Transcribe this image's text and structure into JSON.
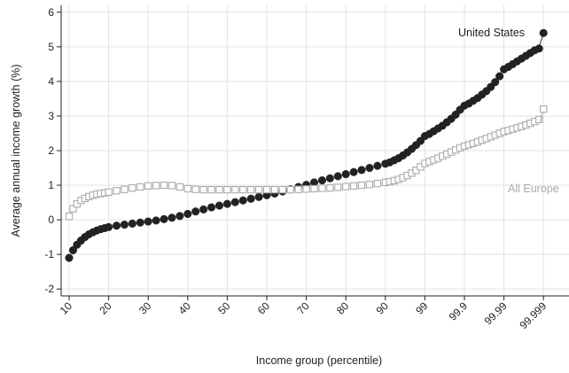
{
  "chart_data": {
    "type": "scatter",
    "title": "",
    "xlabel": "Income group (percentile)",
    "ylabel": "Average annual income growth (%)",
    "x_tick_labels": [
      "10",
      "20",
      "30",
      "40",
      "50",
      "60",
      "70",
      "80",
      "90",
      "99",
      "99.9",
      "99.99",
      "99.999"
    ],
    "ylim": [
      -2.2,
      6.2
    ],
    "y_ticks": [
      -2,
      -1,
      0,
      1,
      2,
      3,
      4,
      5,
      6
    ],
    "y_tick_labels": [
      "-2",
      "-1",
      "0",
      "1",
      "2",
      "3",
      "4",
      "5",
      "6"
    ],
    "grid": true,
    "colors": {
      "united_states": "#222222",
      "all_europe": "#aaaaaa",
      "grid": "#e3e3e3"
    },
    "series": [
      {
        "name": "United States",
        "marker": "filled-circle",
        "color": "#222222",
        "points": [
          [
            10,
            -1.1
          ],
          [
            11,
            -0.88
          ],
          [
            12,
            -0.72
          ],
          [
            13,
            -0.6
          ],
          [
            14,
            -0.5
          ],
          [
            15,
            -0.42
          ],
          [
            16,
            -0.36
          ],
          [
            17,
            -0.31
          ],
          [
            18,
            -0.27
          ],
          [
            19,
            -0.24
          ],
          [
            20,
            -0.21
          ],
          [
            22,
            -0.17
          ],
          [
            24,
            -0.14
          ],
          [
            26,
            -0.11
          ],
          [
            28,
            -0.08
          ],
          [
            30,
            -0.05
          ],
          [
            32,
            -0.02
          ],
          [
            34,
            0.02
          ],
          [
            36,
            0.06
          ],
          [
            38,
            0.11
          ],
          [
            40,
            0.17
          ],
          [
            42,
            0.24
          ],
          [
            44,
            0.3
          ],
          [
            46,
            0.36
          ],
          [
            48,
            0.41
          ],
          [
            50,
            0.46
          ],
          [
            52,
            0.51
          ],
          [
            54,
            0.56
          ],
          [
            56,
            0.61
          ],
          [
            58,
            0.66
          ],
          [
            60,
            0.71
          ],
          [
            62,
            0.76
          ],
          [
            64,
            0.82
          ],
          [
            66,
            0.88
          ],
          [
            68,
            0.95
          ],
          [
            70,
            1.01
          ],
          [
            72,
            1.08
          ],
          [
            74,
            1.14
          ],
          [
            76,
            1.2
          ],
          [
            78,
            1.26
          ],
          [
            80,
            1.32
          ],
          [
            82,
            1.38
          ],
          [
            84,
            1.44
          ],
          [
            86,
            1.5
          ],
          [
            88,
            1.56
          ],
          [
            90,
            1.62
          ],
          [
            91,
            1.66
          ],
          [
            92,
            1.72
          ],
          [
            93,
            1.78
          ],
          [
            94,
            1.86
          ],
          [
            95,
            1.95
          ],
          [
            96,
            2.05
          ],
          [
            97,
            2.16
          ],
          [
            98,
            2.28
          ],
          [
            99,
            2.42
          ],
          [
            99.1,
            2.48
          ],
          [
            99.2,
            2.56
          ],
          [
            99.3,
            2.64
          ],
          [
            99.4,
            2.72
          ],
          [
            99.5,
            2.82
          ],
          [
            99.6,
            2.92
          ],
          [
            99.7,
            3.04
          ],
          [
            99.8,
            3.18
          ],
          [
            99.9,
            3.3
          ],
          [
            99.91,
            3.36
          ],
          [
            99.92,
            3.44
          ],
          [
            99.93,
            3.52
          ],
          [
            99.94,
            3.62
          ],
          [
            99.95,
            3.72
          ],
          [
            99.96,
            3.84
          ],
          [
            99.97,
            3.98
          ],
          [
            99.98,
            4.15
          ],
          [
            99.99,
            4.35
          ],
          [
            99.991,
            4.42
          ],
          [
            99.992,
            4.5
          ],
          [
            99.993,
            4.58
          ],
          [
            99.994,
            4.66
          ],
          [
            99.995,
            4.74
          ],
          [
            99.996,
            4.82
          ],
          [
            99.997,
            4.9
          ],
          [
            99.998,
            4.95
          ],
          [
            99.999,
            5.4
          ]
        ]
      },
      {
        "name": "All Europe",
        "marker": "hollow-square",
        "color": "#aaaaaa",
        "points": [
          [
            10,
            0.1
          ],
          [
            11,
            0.32
          ],
          [
            12,
            0.46
          ],
          [
            13,
            0.56
          ],
          [
            14,
            0.62
          ],
          [
            15,
            0.67
          ],
          [
            16,
            0.71
          ],
          [
            17,
            0.74
          ],
          [
            18,
            0.76
          ],
          [
            19,
            0.78
          ],
          [
            20,
            0.8
          ],
          [
            22,
            0.84
          ],
          [
            24,
            0.88
          ],
          [
            26,
            0.92
          ],
          [
            28,
            0.95
          ],
          [
            30,
            0.98
          ],
          [
            32,
            0.99
          ],
          [
            34,
            1.0
          ],
          [
            36,
            0.99
          ],
          [
            38,
            0.95
          ],
          [
            40,
            0.9
          ],
          [
            42,
            0.88
          ],
          [
            44,
            0.87
          ],
          [
            46,
            0.87
          ],
          [
            48,
            0.87
          ],
          [
            50,
            0.87
          ],
          [
            52,
            0.87
          ],
          [
            54,
            0.87
          ],
          [
            56,
            0.87
          ],
          [
            58,
            0.87
          ],
          [
            60,
            0.87
          ],
          [
            62,
            0.87
          ],
          [
            64,
            0.87
          ],
          [
            66,
            0.87
          ],
          [
            68,
            0.88
          ],
          [
            70,
            0.89
          ],
          [
            72,
            0.9
          ],
          [
            74,
            0.91
          ],
          [
            76,
            0.92
          ],
          [
            78,
            0.94
          ],
          [
            80,
            0.96
          ],
          [
            82,
            0.98
          ],
          [
            84,
            1.0
          ],
          [
            86,
            1.02
          ],
          [
            88,
            1.05
          ],
          [
            90,
            1.08
          ],
          [
            91,
            1.1
          ],
          [
            92,
            1.13
          ],
          [
            93,
            1.17
          ],
          [
            94,
            1.22
          ],
          [
            95,
            1.28
          ],
          [
            96,
            1.35
          ],
          [
            97,
            1.43
          ],
          [
            98,
            1.53
          ],
          [
            99,
            1.63
          ],
          [
            99.1,
            1.68
          ],
          [
            99.2,
            1.73
          ],
          [
            99.3,
            1.78
          ],
          [
            99.4,
            1.84
          ],
          [
            99.5,
            1.9
          ],
          [
            99.6,
            1.96
          ],
          [
            99.7,
            2.02
          ],
          [
            99.8,
            2.08
          ],
          [
            99.9,
            2.13
          ],
          [
            99.91,
            2.17
          ],
          [
            99.92,
            2.21
          ],
          [
            99.93,
            2.25
          ],
          [
            99.94,
            2.3
          ],
          [
            99.95,
            2.35
          ],
          [
            99.96,
            2.4
          ],
          [
            99.97,
            2.45
          ],
          [
            99.98,
            2.5
          ],
          [
            99.99,
            2.55
          ],
          [
            99.991,
            2.58
          ],
          [
            99.992,
            2.62
          ],
          [
            99.993,
            2.66
          ],
          [
            99.994,
            2.7
          ],
          [
            99.995,
            2.74
          ],
          [
            99.996,
            2.79
          ],
          [
            99.997,
            2.84
          ],
          [
            99.998,
            2.9
          ],
          [
            99.999,
            3.2
          ]
        ]
      }
    ],
    "annotations": [
      {
        "series": "United States",
        "text": "United States"
      },
      {
        "series": "All Europe",
        "text": "All Europe"
      }
    ]
  }
}
